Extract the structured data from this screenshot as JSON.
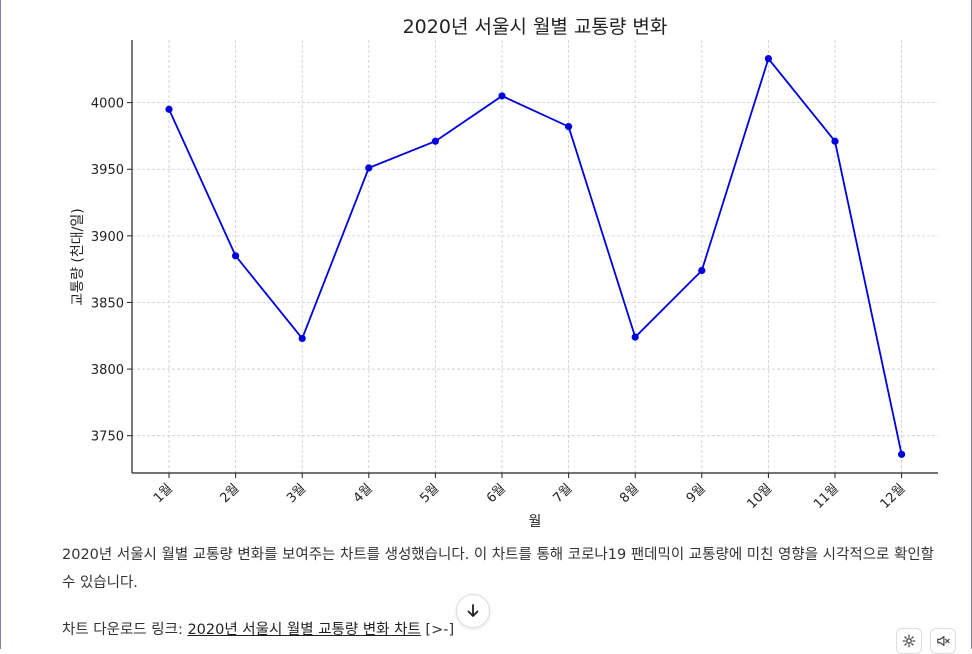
{
  "chart_data": {
    "type": "line",
    "title": "2020년 서울시 월별 교통량 변화",
    "xlabel": "월",
    "ylabel": "교통량 (천대/일)",
    "categories": [
      "1월",
      "2월",
      "3월",
      "4월",
      "5월",
      "6월",
      "7월",
      "8월",
      "9월",
      "10월",
      "11월",
      "12월"
    ],
    "series": [
      {
        "values": [
          3995,
          3885,
          3823,
          3951,
          3971,
          4005,
          3982,
          3824,
          3874,
          4033,
          3971,
          3736
        ]
      }
    ],
    "yticks": [
      3750,
      3800,
      3850,
      3900,
      3950,
      4000
    ],
    "ylim": [
      3722,
      4047
    ],
    "grid": true,
    "line_color": "#0000dd"
  },
  "message": {
    "text": "2020년 서울시 월별 교통량 변화를 보여주는 차트를 생성했습니다. 이 차트를 통해 코로나19 팬데믹이 교통량에 미친 영향을 시각적으로 확인할 수 있습니다.",
    "download_prefix": "차트 다운로드 링크: ",
    "download_link": "2020년 서울시 월별 교통량 변화 차트",
    "download_suffix": "[>-]"
  },
  "icons": {
    "scroll_down": "arrow-down-icon",
    "settings": "gear-icon",
    "mute": "speaker-muted-icon"
  }
}
